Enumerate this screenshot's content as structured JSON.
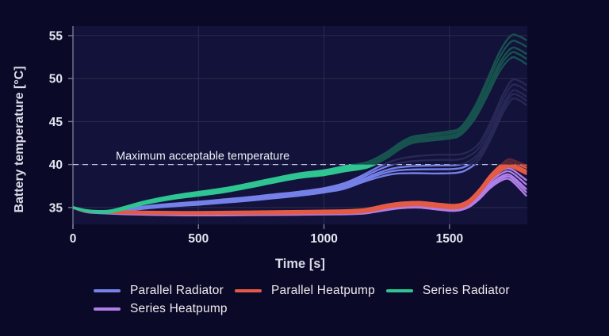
{
  "chart_data": {
    "type": "line",
    "title": "",
    "xlabel": "Time [s]",
    "ylabel": "Battery temperature [°C]",
    "xlim": [
      0,
      1810
    ],
    "ylim": [
      33.05,
      56.1
    ],
    "x_ticks": [
      0,
      500,
      1000,
      1500
    ],
    "y_ticks": [
      35,
      40,
      45,
      50,
      55
    ],
    "grid": true,
    "legend_position": "bottom",
    "annotation": {
      "label": "Maximum acceptable temperature",
      "value": 40,
      "line_style": "dashed",
      "line_color": "#b9c3de"
    },
    "note": "Each series is an ensemble band of runs; portions above 40 °C are rendered dimmed",
    "strand_offsets": [
      -1,
      -0.55,
      -0.15,
      0.45,
      1
    ],
    "z_order": [
      0,
      3,
      1,
      2
    ],
    "series": [
      {
        "name": "Parallel Radiator",
        "color": "#7580e8",
        "dim_color": "#282857",
        "points": [
          [
            0,
            35.0
          ],
          [
            50,
            34.6
          ],
          [
            100,
            34.45
          ],
          [
            150,
            34.5
          ],
          [
            200,
            34.7
          ],
          [
            300,
            35.05
          ],
          [
            400,
            35.3
          ],
          [
            500,
            35.5
          ],
          [
            600,
            35.75
          ],
          [
            700,
            36.0
          ],
          [
            800,
            36.3
          ],
          [
            900,
            36.6
          ],
          [
            1000,
            37.0
          ],
          [
            1080,
            37.5
          ],
          [
            1150,
            38.3
          ],
          [
            1220,
            39.15
          ],
          [
            1280,
            39.7
          ],
          [
            1350,
            39.95
          ],
          [
            1450,
            40.05
          ],
          [
            1530,
            40.1
          ],
          [
            1575,
            40.5
          ],
          [
            1620,
            41.6
          ],
          [
            1670,
            44.3
          ],
          [
            1710,
            46.9
          ],
          [
            1748,
            48.7
          ],
          [
            1778,
            48.6
          ],
          [
            1805,
            48.1
          ]
        ],
        "spread": [
          [
            0,
            0.05
          ],
          [
            150,
            0.1
          ],
          [
            500,
            0.18
          ],
          [
            1000,
            0.25
          ],
          [
            1150,
            0.4
          ],
          [
            1300,
            0.85
          ],
          [
            1420,
            1.1
          ],
          [
            1530,
            1.05
          ],
          [
            1620,
            0.95
          ],
          [
            1745,
            1.1
          ],
          [
            1805,
            1.15
          ]
        ]
      },
      {
        "name": "Parallel Heatpump",
        "color": "#e55a45",
        "dim_color": "#5c2736",
        "points": [
          [
            0,
            35.0
          ],
          [
            50,
            34.6
          ],
          [
            100,
            34.5
          ],
          [
            200,
            34.45
          ],
          [
            300,
            34.4
          ],
          [
            500,
            34.35
          ],
          [
            700,
            34.4
          ],
          [
            900,
            34.45
          ],
          [
            1050,
            34.5
          ],
          [
            1150,
            34.6
          ],
          [
            1200,
            34.85
          ],
          [
            1260,
            35.2
          ],
          [
            1320,
            35.4
          ],
          [
            1380,
            35.45
          ],
          [
            1450,
            35.25
          ],
          [
            1510,
            35.1
          ],
          [
            1545,
            35.2
          ],
          [
            1580,
            35.7
          ],
          [
            1620,
            36.9
          ],
          [
            1660,
            38.4
          ],
          [
            1700,
            39.5
          ],
          [
            1732,
            40.15
          ],
          [
            1755,
            40.05
          ],
          [
            1805,
            39.4
          ]
        ],
        "spread": [
          [
            0,
            0.05
          ],
          [
            150,
            0.1
          ],
          [
            500,
            0.13
          ],
          [
            1000,
            0.16
          ],
          [
            1300,
            0.2
          ],
          [
            1545,
            0.22
          ],
          [
            1660,
            0.28
          ],
          [
            1732,
            0.42
          ],
          [
            1805,
            0.5
          ]
        ]
      },
      {
        "name": "Series Radiator",
        "color": "#2ec592",
        "dim_color": "#17524e",
        "points": [
          [
            0,
            35.0
          ],
          [
            50,
            34.65
          ],
          [
            100,
            34.5
          ],
          [
            150,
            34.55
          ],
          [
            200,
            34.9
          ],
          [
            250,
            35.3
          ],
          [
            300,
            35.65
          ],
          [
            400,
            36.2
          ],
          [
            500,
            36.6
          ],
          [
            600,
            37.0
          ],
          [
            700,
            37.55
          ],
          [
            800,
            38.15
          ],
          [
            900,
            38.7
          ],
          [
            1000,
            39.05
          ],
          [
            1080,
            39.5
          ],
          [
            1175,
            40.0
          ],
          [
            1250,
            41.1
          ],
          [
            1300,
            42.1
          ],
          [
            1350,
            42.85
          ],
          [
            1420,
            43.15
          ],
          [
            1500,
            43.45
          ],
          [
            1545,
            43.9
          ],
          [
            1600,
            46.0
          ],
          [
            1650,
            48.9
          ],
          [
            1700,
            52.0
          ],
          [
            1745,
            53.7
          ],
          [
            1775,
            53.6
          ],
          [
            1805,
            53.1
          ]
        ],
        "spread": [
          [
            0,
            0.05
          ],
          [
            150,
            0.12
          ],
          [
            500,
            0.22
          ],
          [
            1000,
            0.28
          ],
          [
            1250,
            0.35
          ],
          [
            1450,
            0.4
          ],
          [
            1545,
            0.45
          ],
          [
            1650,
            0.95
          ],
          [
            1745,
            1.3
          ],
          [
            1805,
            1.4
          ]
        ]
      },
      {
        "name": "Series Heatpump",
        "color": "#b07ee8",
        "dim_color": "#3e2a5c",
        "points": [
          [
            0,
            35.0
          ],
          [
            50,
            34.55
          ],
          [
            100,
            34.45
          ],
          [
            200,
            34.35
          ],
          [
            300,
            34.3
          ],
          [
            500,
            34.25
          ],
          [
            700,
            34.3
          ],
          [
            900,
            34.35
          ],
          [
            1050,
            34.4
          ],
          [
            1150,
            34.5
          ],
          [
            1200,
            34.7
          ],
          [
            1260,
            35.0
          ],
          [
            1320,
            35.2
          ],
          [
            1380,
            35.25
          ],
          [
            1450,
            35.05
          ],
          [
            1510,
            34.9
          ],
          [
            1545,
            35.0
          ],
          [
            1580,
            35.45
          ],
          [
            1620,
            36.45
          ],
          [
            1660,
            37.7
          ],
          [
            1700,
            38.6
          ],
          [
            1732,
            38.95
          ],
          [
            1760,
            38.5
          ],
          [
            1805,
            37.3
          ]
        ],
        "spread": [
          [
            0,
            0.05
          ],
          [
            150,
            0.12
          ],
          [
            500,
            0.17
          ],
          [
            1000,
            0.2
          ],
          [
            1300,
            0.25
          ],
          [
            1545,
            0.3
          ],
          [
            1660,
            0.5
          ],
          [
            1732,
            0.6
          ],
          [
            1805,
            0.9
          ]
        ]
      }
    ]
  },
  "legend": {
    "rows": [
      [
        0,
        1,
        2
      ],
      [
        3
      ]
    ]
  },
  "colors": {
    "outer_background": "#0a0a28",
    "plot_background": "#12123a",
    "gridline": "#2c2c4a",
    "axis": "#7a7a92",
    "tick_text": "#e4e6f0",
    "axis_label_text": "#dcdcea",
    "annotation_text": "#eceef6"
  }
}
